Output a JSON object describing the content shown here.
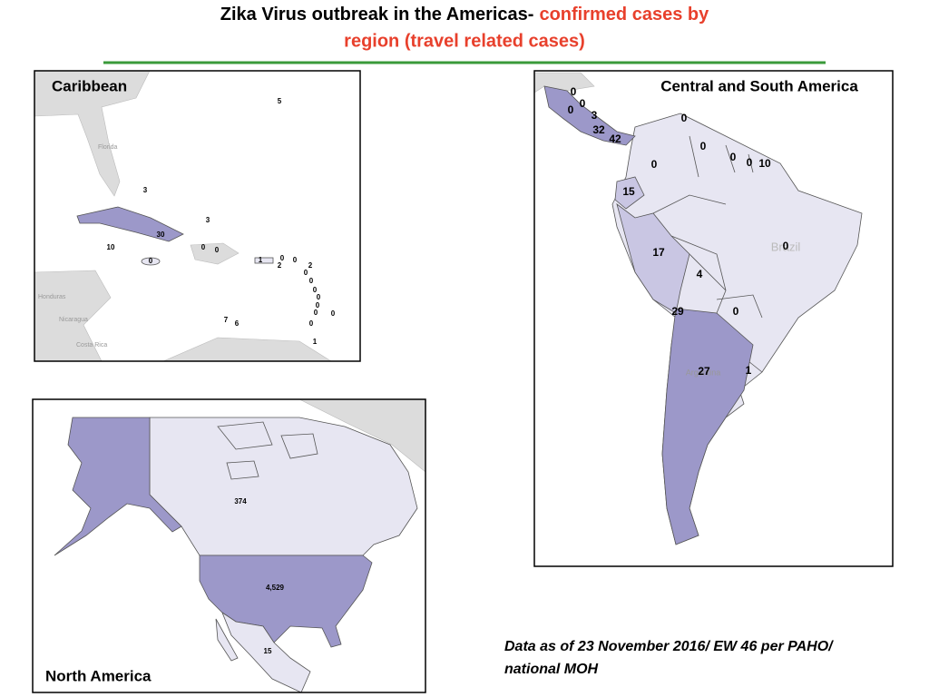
{
  "title": [
    "Zika Virus outbreak in the Americas-",
    "confirmed cases by",
    "region (travel related cases)"
  ],
  "caribbean": {
    "name": "Caribbean",
    "labels": [
      "5",
      "3",
      "3",
      "30",
      "10",
      "0",
      "0",
      "0",
      "1",
      "0",
      "2",
      "0",
      "2",
      "0",
      "0",
      "0",
      "0",
      "0",
      "0",
      "0",
      "0",
      "7",
      "6",
      "1"
    ],
    "places": [
      "Florida",
      "Honduras",
      "Nicaragua",
      "Costa Rica"
    ]
  },
  "north_america": {
    "name": "North America",
    "labels": [
      "374",
      "4,529",
      "15"
    ]
  },
  "central_south_america": {
    "name": "Central and South America",
    "labels": [
      "0",
      "0",
      "0",
      "3",
      "32",
      "42",
      "0",
      "0",
      "0",
      "0",
      "0",
      "10",
      "15",
      "17",
      "4",
      "0",
      "29",
      "0",
      "27",
      "1"
    ],
    "places": [
      "Brazil",
      "Argentina"
    ]
  },
  "footnote": [
    "Data as of 23 November 2016/ EW 46 per PAHO/",
    "national MOH"
  ]
}
